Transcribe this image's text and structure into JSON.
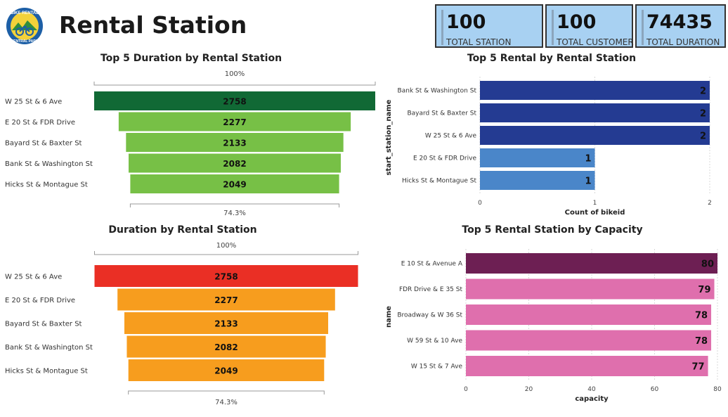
{
  "header": {
    "title": "Rental Station",
    "logo_text_top": "BIKE RENTAL",
    "logo_text_bottom": "CENTRAL PARK"
  },
  "kpis": [
    {
      "value": "100",
      "label": "TOTAL STATION"
    },
    {
      "value": "100",
      "label": "TOTAL CUSTOMER"
    },
    {
      "value": "74435",
      "label": "TOTAL DURATION"
    }
  ],
  "colors": {
    "funnel1_top": "#116935",
    "funnel1_rest": "#77c046",
    "funnel2_top": "#ea2f25",
    "funnel2_rest": "#f79d1e",
    "bar1_top": "#243b92",
    "bar1_rest": "#4a86c9",
    "bar2_top": "#6d1f53",
    "bar2_rest": "#df6fad"
  },
  "chart_data": [
    {
      "type": "funnel",
      "title": "Top 5 Duration by Rental Station",
      "categories": [
        "W 25 St & 6 Ave",
        "E 20 St & FDR Drive",
        "Bayard St & Baxter St",
        "Bank St & Washington St",
        "Hicks St & Montague St"
      ],
      "values": [
        2758,
        2277,
        2133,
        2082,
        2049
      ],
      "top_percent_label": "100%",
      "bottom_percent_label": "74.3%"
    },
    {
      "type": "bar",
      "orientation": "horizontal",
      "title": "Top 5 Rental by Rental Station",
      "categories": [
        "Bank St & Washington St",
        "Bayard St & Baxter St",
        "W 25 St & 6 Ave",
        "E 20 St & FDR Drive",
        "Hicks St & Montague St"
      ],
      "values": [
        2,
        2,
        2,
        1,
        1
      ],
      "xlabel": "Count of bikeid",
      "ylabel": "start_station_name",
      "xlim": [
        0,
        2
      ],
      "xticks": [
        0,
        1,
        2
      ],
      "grid": true
    },
    {
      "type": "funnel",
      "title": "Duration by Rental Station",
      "categories": [
        "W 25 St & 6 Ave",
        "E 20 St & FDR Drive",
        "Bayard St & Baxter St",
        "Bank St & Washington St",
        "Hicks St & Montague St"
      ],
      "values": [
        2758,
        2277,
        2133,
        2082,
        2049
      ],
      "top_percent_label": "100%",
      "bottom_percent_label": "74.3%"
    },
    {
      "type": "bar",
      "orientation": "horizontal",
      "title": "Top 5 Rental Station by Capacity",
      "categories": [
        "E 10 St & Avenue A",
        "FDR Drive & E 35 St",
        "Broadway & W 36 St",
        "W 59 St & 10 Ave",
        "W 15 St & 7 Ave"
      ],
      "values": [
        80,
        79,
        78,
        78,
        77
      ],
      "xlabel": "capacity",
      "ylabel": "name",
      "xlim": [
        0,
        80
      ],
      "xticks": [
        0,
        20,
        40,
        60,
        80
      ],
      "grid": true
    }
  ]
}
